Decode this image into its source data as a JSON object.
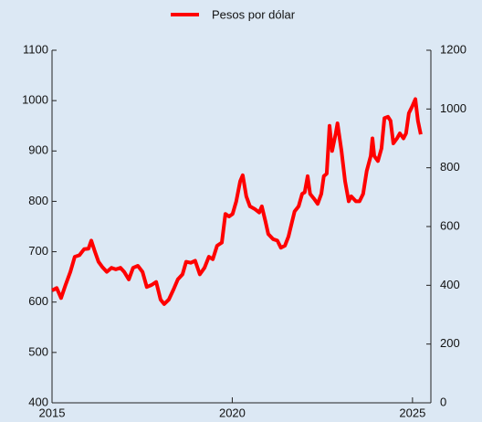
{
  "chart_data": {
    "type": "line",
    "x": [
      2015.0,
      2015.13,
      2015.25,
      2015.38,
      2015.51,
      2015.63,
      2015.76,
      2015.89,
      2016.01,
      2016.09,
      2016.19,
      2016.29,
      2016.39,
      2016.52,
      2016.65,
      2016.77,
      2016.9,
      2017.0,
      2017.13,
      2017.25,
      2017.38,
      2017.51,
      2017.63,
      2017.76,
      2017.89,
      2018.01,
      2018.11,
      2018.24,
      2018.37,
      2018.49,
      2018.62,
      2018.72,
      2018.85,
      2018.97,
      2019.1,
      2019.23,
      2019.35,
      2019.46,
      2019.58,
      2019.71,
      2019.81,
      2019.91,
      2020.01,
      2020.11,
      2020.22,
      2020.29,
      2020.39,
      2020.49,
      2020.62,
      2020.75,
      2020.82,
      2020.92,
      2021.0,
      2021.13,
      2021.25,
      2021.35,
      2021.46,
      2021.56,
      2021.66,
      2021.73,
      2021.84,
      2021.94,
      2022.01,
      2022.09,
      2022.16,
      2022.27,
      2022.37,
      2022.47,
      2022.54,
      2022.62,
      2022.7,
      2022.77,
      2022.87,
      2022.92,
      2023.03,
      2023.13,
      2023.23,
      2023.3,
      2023.43,
      2023.53,
      2023.63,
      2023.73,
      2023.84,
      2023.89,
      2023.94,
      2024.04,
      2024.14,
      2024.22,
      2024.32,
      2024.39,
      2024.47,
      2024.57,
      2024.65,
      2024.75,
      2024.82,
      2024.9,
      2025.0,
      2025.08,
      2025.15,
      2025.23
    ],
    "series": [
      {
        "name": "Pesos por dólar",
        "color": "#ff0000",
        "values": [
          623,
          628,
          608,
          635,
          660,
          690,
          693,
          705,
          706,
          722,
          700,
          680,
          670,
          660,
          668,
          665,
          668,
          660,
          645,
          668,
          672,
          660,
          630,
          634,
          640,
          605,
          596,
          605,
          625,
          645,
          655,
          680,
          678,
          682,
          655,
          668,
          690,
          685,
          712,
          718,
          775,
          770,
          775,
          800,
          840,
          852,
          810,
          790,
          785,
          778,
          790,
          760,
          735,
          725,
          722,
          708,
          712,
          730,
          760,
          780,
          790,
          815,
          818,
          850,
          815,
          805,
          795,
          815,
          850,
          855,
          950,
          900,
          935,
          955,
          900,
          840,
          800,
          810,
          800,
          800,
          815,
          860,
          890,
          925,
          890,
          880,
          905,
          965,
          968,
          960,
          915,
          925,
          935,
          925,
          935,
          975,
          990,
          1003,
          960,
          933
        ]
      }
    ],
    "xlim": [
      2015,
      2025.51
    ],
    "xticks": [
      2015,
      2020,
      2025
    ],
    "ylim": [
      400,
      1100
    ],
    "yticks": [
      400,
      500,
      600,
      700,
      800,
      900,
      1000,
      1100
    ],
    "y2lim": [
      0,
      1200
    ],
    "y2ticks": [
      0,
      200,
      400,
      600,
      800,
      1000,
      1200
    ],
    "legend": "top"
  }
}
